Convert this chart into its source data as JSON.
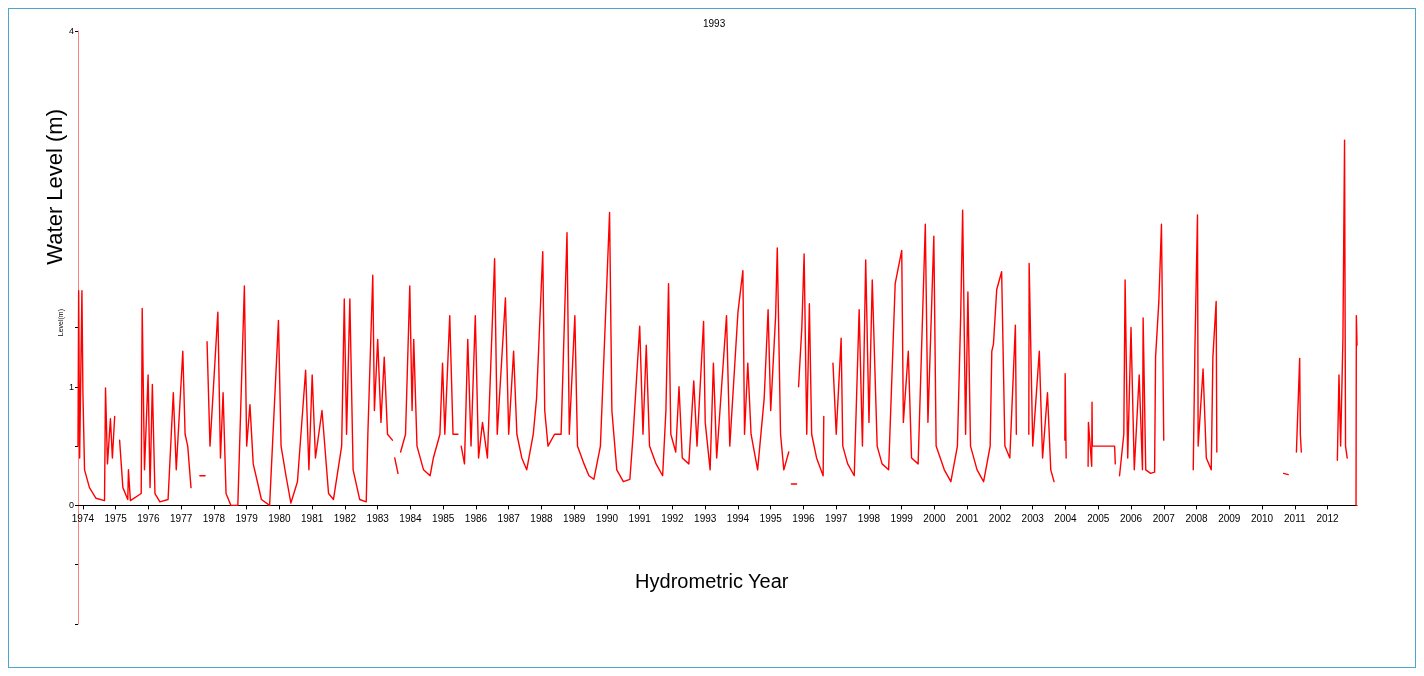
{
  "chart_data": {
    "type": "line",
    "title": "1993",
    "xlabel": "Hydrometric Year",
    "ylabel": "Water Level (m)",
    "annotations": [
      "Level(m)"
    ],
    "xlim": [
      1973.85,
      2012.9
    ],
    "xticks": [
      1974,
      1975,
      1976,
      1977,
      1978,
      1979,
      1980,
      1981,
      1982,
      1983,
      1984,
      1985,
      1986,
      1987,
      1988,
      1989,
      1990,
      1991,
      1992,
      1993,
      1994,
      1995,
      1996,
      1997,
      1998,
      1999,
      2000,
      2001,
      2002,
      2003,
      2004,
      2005,
      2006,
      2007,
      2008,
      2009,
      2010,
      2011,
      2012
    ],
    "ylim": [
      -1,
      4
    ],
    "yticks": [
      {
        "value": -1,
        "label": null
      },
      {
        "value": -0.5,
        "label": null
      },
      0,
      {
        "value": 0.5,
        "label": null
      },
      1,
      {
        "value": 1.5,
        "label": null
      },
      4
    ],
    "grid": false,
    "marker": "none",
    "line_style": "solid",
    "series": [
      {
        "color": "#ff0000",
        "x": [
          1973.85,
          1973.87,
          1973.9,
          1973.97,
          1974.0,
          1974.05,
          1974.2,
          1974.4,
          1974.66,
          1974.69,
          1974.75,
          1974.84,
          1974.9,
          1974.97,
          1975.04,
          1975.12,
          1975.22,
          1975.37,
          1975.39,
          1975.45,
          1975.78,
          1975.81,
          1975.88,
          1975.99,
          1976.05,
          1976.12,
          1976.2,
          1976.35,
          1976.6,
          1976.76,
          1976.85,
          1977.05,
          1977.12,
          1977.2,
          1977.3,
          1977.5,
          1977.57,
          1977.73,
          1977.74,
          1977.79,
          1977.88,
          1978.12,
          1978.2,
          1978.28,
          1978.37,
          1978.52,
          1978.73,
          1978.93,
          1979.0,
          1979.1,
          1979.2,
          1979.45,
          1979.7,
          1979.97,
          1980.05,
          1980.2,
          1980.35,
          1980.55,
          1980.8,
          1980.9,
          1981.0,
          1981.1,
          1981.3,
          1981.5,
          1981.65,
          1981.9,
          1981.98,
          1982.05,
          1982.15,
          1982.25,
          1982.45,
          1982.65,
          1982.7,
          1982.85,
          1982.9,
          1983.0,
          1983.1,
          1983.2,
          1983.3,
          1983.45,
          1983.48,
          1983.52,
          1983.62,
          1983.66,
          1983.7,
          1983.85,
          1983.98,
          1984.05,
          1984.1,
          1984.2,
          1984.4,
          1984.6,
          1984.7,
          1984.9,
          1984.98,
          1985.05,
          1985.2,
          1985.3,
          1985.45,
          1985.5,
          1985.55,
          1985.65,
          1985.75,
          1985.85,
          1985.98,
          1986.08,
          1986.2,
          1986.35,
          1986.57,
          1986.65,
          1986.9,
          1987.0,
          1987.15,
          1987.25,
          1987.4,
          1987.55,
          1987.75,
          1987.85,
          1988.04,
          1988.1,
          1988.2,
          1988.4,
          1988.6,
          1988.78,
          1988.85,
          1989.02,
          1989.1,
          1989.3,
          1989.45,
          1989.6,
          1989.8,
          1989.95,
          1990.08,
          1990.15,
          1990.3,
          1990.5,
          1990.7,
          1990.8,
          1991.0,
          1991.1,
          1991.2,
          1991.3,
          1991.5,
          1991.7,
          1991.8,
          1991.88,
          1991.95,
          1992.1,
          1992.2,
          1992.3,
          1992.5,
          1992.65,
          1992.75,
          1992.95,
          1993.0,
          1993.15,
          1993.25,
          1993.35,
          1993.65,
          1993.75,
          1994.0,
          1994.15,
          1994.2,
          1994.3,
          1994.4,
          1994.6,
          1994.8,
          1994.92,
          1995.0,
          1995.15,
          1995.2,
          1995.3,
          1995.4,
          1995.55,
          1995.6,
          1995.63,
          1995.79,
          1995.8,
          1995.85,
          1995.95,
          1996.02,
          1996.1,
          1996.18,
          1996.25,
          1996.4,
          1996.6,
          1996.62,
          1996.7,
          1996.9,
          1997.0,
          1997.15,
          1997.2,
          1997.35,
          1997.55,
          1997.7,
          1997.8,
          1997.9,
          1998.0,
          1998.1,
          1998.25,
          1998.4,
          1998.6,
          1998.8,
          1999.0,
          1999.05,
          1999.2,
          1999.3,
          1999.5,
          1999.72,
          1999.8,
          1999.98,
          2000.05,
          2000.3,
          2000.5,
          2000.7,
          2000.8,
          2000.86,
          2000.95,
          2001.02,
          2001.1,
          2001.3,
          2001.5,
          2001.7,
          2001.75,
          2001.8,
          2001.9,
          2002.05,
          2002.15,
          2002.3,
          2002.47,
          2002.5,
          2002.7,
          2002.88,
          2002.89,
          2003.0,
          2003.2,
          2003.3,
          2003.45,
          2003.55,
          2003.65,
          2003.8,
          2003.98,
          2003.99,
          2004.02,
          2004.3,
          2004.69,
          2004.7,
          2004.8,
          2004.81,
          2004.82,
          2005.5,
          2005.52,
          2005.58,
          2005.65,
          2005.78,
          2005.82,
          2005.9,
          2006.0,
          2006.1,
          2006.25,
          2006.35,
          2006.37,
          2006.45,
          2006.6,
          2006.72,
          2006.75,
          2006.85,
          2006.93,
          2007.0,
          2007.2,
          2007.9,
          2007.95,
          2008.03,
          2008.05,
          2008.2,
          2008.3,
          2008.45,
          2008.5,
          2008.6,
          2008.62,
          2009.5,
          2010.66,
          2010.8,
          2010.9,
          2011.05,
          2011.15,
          2011.17,
          2011.2,
          2011.7,
          2012.3,
          2012.35,
          2012.4,
          2012.47,
          2012.52,
          2012.55,
          2012.6,
          2012.7,
          2012.87,
          2012.88,
          2012.9
        ],
        "values": [
          0.5,
          1.81,
          0.4,
          1.81,
          0.95,
          0.3,
          0.15,
          0.06,
          0.04,
          0.99,
          0.35,
          0.73,
          0.4,
          0.75,
          null,
          0.55,
          0.15,
          0.05,
          0.3,
          0.04,
          0.1,
          1.66,
          0.3,
          1.1,
          0.15,
          1.02,
          0.1,
          0.03,
          0.05,
          0.95,
          0.3,
          1.3,
          0.6,
          0.5,
          0.15,
          null,
          0.25,
          0.25,
          null,
          1.38,
          0.5,
          1.63,
          0.4,
          0.95,
          0.1,
          0.0,
          0.0,
          1.85,
          0.5,
          0.85,
          0.35,
          0.05,
          0.0,
          1.56,
          0.5,
          0.25,
          0.02,
          0.2,
          1.14,
          0.3,
          1.1,
          0.4,
          0.8,
          0.1,
          0.05,
          0.5,
          1.74,
          0.6,
          1.74,
          0.3,
          0.05,
          0.03,
          0.6,
          1.94,
          0.8,
          1.4,
          0.7,
          1.25,
          0.6,
          0.55,
          null,
          0.4,
          0.27,
          null,
          0.45,
          0.6,
          1.85,
          0.8,
          1.4,
          0.5,
          0.3,
          0.25,
          0.4,
          0.6,
          1.2,
          0.6,
          1.6,
          0.6,
          0.6,
          null,
          0.5,
          0.35,
          1.4,
          0.5,
          1.6,
          0.4,
          0.7,
          0.4,
          2.08,
          0.6,
          1.75,
          0.6,
          1.3,
          0.6,
          0.4,
          0.3,
          0.6,
          0.9,
          2.14,
          0.8,
          0.5,
          0.6,
          0.6,
          2.3,
          0.6,
          1.6,
          0.5,
          0.35,
          0.25,
          0.22,
          0.5,
          1.55,
          2.47,
          0.8,
          0.3,
          0.2,
          0.22,
          0.6,
          1.51,
          0.6,
          1.35,
          0.5,
          0.35,
          0.25,
          0.8,
          1.87,
          0.6,
          0.45,
          1.0,
          0.4,
          0.35,
          1.05,
          0.5,
          1.55,
          0.7,
          0.3,
          1.2,
          0.4,
          1.6,
          0.5,
          1.63,
          1.98,
          0.6,
          1.2,
          0.6,
          0.3,
          0.9,
          1.65,
          0.8,
          1.6,
          2.17,
          0.6,
          0.3,
          0.45,
          null,
          0.18,
          0.18,
          null,
          1.0,
          1.5,
          2.12,
          0.6,
          1.7,
          0.6,
          0.4,
          0.25,
          0.75,
          null,
          1.2,
          0.6,
          1.41,
          0.5,
          0.35,
          0.25,
          1.65,
          0.5,
          2.07,
          0.7,
          1.9,
          0.5,
          0.35,
          0.3,
          1.87,
          2.15,
          0.7,
          1.3,
          0.4,
          0.35,
          2.37,
          0.7,
          2.27,
          0.5,
          0.3,
          0.2,
          0.5,
          1.6,
          2.49,
          0.6,
          1.8,
          0.5,
          0.3,
          0.2,
          0.5,
          1.3,
          1.36,
          1.82,
          1.97,
          0.5,
          0.4,
          1.52,
          0.6,
          null,
          0.6,
          2.04,
          0.5,
          1.3,
          0.4,
          0.95,
          0.3,
          0.2,
          null,
          0.55,
          1.11,
          0.4,
          null,
          0.33,
          0.7,
          0.33,
          0.87,
          0.5,
          0.5,
          0.35,
          null,
          0.25,
          0.6,
          1.9,
          0.4,
          1.5,
          0.3,
          1.1,
          0.3,
          1.58,
          0.3,
          0.27,
          0.28,
          1.25,
          1.72,
          2.37,
          0.55,
          null,
          0.3,
          1.3,
          2.45,
          0.5,
          1.15,
          0.4,
          0.3,
          1.25,
          1.72,
          0.45,
          null,
          0.27,
          0.26,
          null,
          0.45,
          1.24,
          0.6,
          0.45,
          null,
          0.38,
          1.1,
          0.5,
          1.4,
          3.08,
          0.5,
          0.4,
          null,
          0.0,
          1.6,
          1.35
        ]
      }
    ]
  }
}
